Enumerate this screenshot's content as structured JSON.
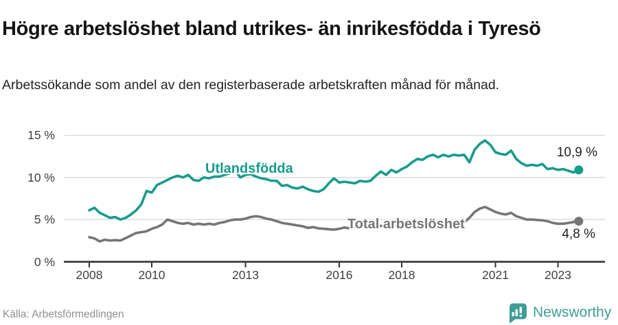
{
  "page": {
    "title": "Högre arbetslöshet bland utrikes- än inrikesfödda i Tyresö",
    "subtitle": "Arbetssökande som andel av den registerbaserade arbetskraften månad för månad.",
    "source": "Källa: Arbetsförmedlingen",
    "brand": "Newsworthy",
    "brand_color": "#3f9d97"
  },
  "chart_data": {
    "type": "line",
    "title": "Högre arbetslöshet bland utrikes- än inrikesfödda i Tyresö",
    "subtitle": "Arbetssökande som andel av den registerbaserade arbetskraften månad för månad.",
    "unit": "%",
    "grid": "horizontal",
    "legend": "inline-labels",
    "xlim": [
      2007.2,
      2024.5
    ],
    "ylim": [
      0,
      17
    ],
    "xticks": [
      2008,
      2010,
      2013,
      2016,
      2018,
      2021,
      2023
    ],
    "xtick_labels": [
      "2008",
      "2010",
      "2013",
      "2016",
      "2018",
      "2021",
      "2023"
    ],
    "yticks": [
      0,
      5,
      10,
      15
    ],
    "ytick_labels": [
      "0 %",
      "5 %",
      "10 %",
      "15 %"
    ],
    "x": [
      2008,
      2008.167,
      2008.333,
      2008.5,
      2008.667,
      2008.833,
      2009,
      2009.167,
      2009.333,
      2009.5,
      2009.667,
      2009.833,
      2010,
      2010.167,
      2010.333,
      2010.5,
      2010.667,
      2010.833,
      2011,
      2011.167,
      2011.333,
      2011.5,
      2011.667,
      2011.833,
      2012,
      2012.167,
      2012.333,
      2012.5,
      2012.667,
      2012.833,
      2013,
      2013.167,
      2013.333,
      2013.5,
      2013.667,
      2013.833,
      2014,
      2014.167,
      2014.333,
      2014.5,
      2014.667,
      2014.833,
      2015,
      2015.167,
      2015.333,
      2015.5,
      2015.667,
      2015.833,
      2016,
      2016.167,
      2016.333,
      2016.5,
      2016.667,
      2016.833,
      2017,
      2017.167,
      2017.333,
      2017.5,
      2017.667,
      2017.833,
      2018,
      2018.167,
      2018.333,
      2018.5,
      2018.667,
      2018.833,
      2019,
      2019.167,
      2019.333,
      2019.5,
      2019.667,
      2019.833,
      2020,
      2020.167,
      2020.333,
      2020.5,
      2020.667,
      2020.833,
      2021,
      2021.167,
      2021.333,
      2021.5,
      2021.667,
      2021.833,
      2022,
      2022.167,
      2022.333,
      2022.5,
      2022.667,
      2022.833,
      2023,
      2023.167,
      2023.333,
      2023.5,
      2023.667
    ],
    "series": [
      {
        "name": "Utlandsfödda",
        "color": "#169b8d",
        "end_label": "10,9 %",
        "end_value": 10.9,
        "values": [
          6.1,
          6.4,
          5.8,
          5.5,
          5.2,
          5.3,
          5.0,
          5.2,
          5.6,
          6.1,
          6.8,
          8.4,
          8.2,
          9.1,
          9.4,
          9.7,
          10.0,
          10.2,
          10.0,
          10.3,
          9.7,
          9.6,
          10.0,
          9.9,
          10.1,
          10.1,
          10.3,
          10.5,
          10.9,
          10.0,
          10.3,
          10.4,
          10.1,
          9.9,
          9.8,
          9.6,
          9.6,
          9.0,
          9.1,
          8.8,
          8.7,
          8.9,
          8.6,
          8.4,
          8.3,
          8.6,
          9.3,
          9.9,
          9.4,
          9.5,
          9.4,
          9.3,
          9.6,
          9.5,
          9.6,
          10.2,
          10.7,
          10.3,
          10.9,
          10.6,
          11.0,
          11.3,
          11.8,
          12.2,
          12.1,
          12.5,
          12.7,
          12.4,
          12.7,
          12.5,
          12.7,
          12.6,
          12.7,
          11.8,
          13.3,
          14.0,
          14.4,
          13.9,
          13.0,
          12.8,
          12.7,
          13.2,
          12.2,
          11.7,
          11.4,
          11.5,
          11.4,
          11.6,
          11.0,
          11.1,
          10.9,
          11.0,
          10.8,
          10.6,
          10.9
        ]
      },
      {
        "name": "Total arbetslöshet",
        "color": "#757575",
        "end_label": "4,8 %",
        "end_value": 4.8,
        "values": [
          2.9,
          2.75,
          2.4,
          2.6,
          2.5,
          2.55,
          2.5,
          2.8,
          3.1,
          3.4,
          3.5,
          3.6,
          3.9,
          4.1,
          4.4,
          5.0,
          4.8,
          4.6,
          4.5,
          4.6,
          4.4,
          4.5,
          4.4,
          4.5,
          4.4,
          4.6,
          4.7,
          4.9,
          5.0,
          5.0,
          5.1,
          5.3,
          5.4,
          5.3,
          5.1,
          5.0,
          4.8,
          4.6,
          4.5,
          4.4,
          4.3,
          4.2,
          4.0,
          4.1,
          3.95,
          3.9,
          3.85,
          3.8,
          3.9,
          4.05,
          3.95,
          4.1,
          4.0,
          4.1,
          4.15,
          4.2,
          4.25,
          4.3,
          4.3,
          4.35,
          4.35,
          4.4,
          4.4,
          4.45,
          4.45,
          4.5,
          4.5,
          4.5,
          4.55,
          4.55,
          4.6,
          4.6,
          4.65,
          5.2,
          5.9,
          6.3,
          6.5,
          6.2,
          5.9,
          5.7,
          5.6,
          5.8,
          5.4,
          5.2,
          5.0,
          5.0,
          4.95,
          4.9,
          4.8,
          4.6,
          4.5,
          4.5,
          4.6,
          4.7,
          4.8
        ]
      }
    ]
  }
}
